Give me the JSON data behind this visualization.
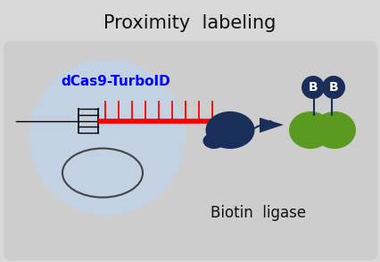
{
  "title": "Proximity  labeling",
  "title_fontsize": 15,
  "title_color": "#111111",
  "bg_color": "#d8d8d8",
  "panel_color": "#cccccc",
  "dna_line_color": "#ff0000",
  "cas9_color": "#1a2e5a",
  "label_text": "dCas9-TurboID",
  "label_color": "#0000ff",
  "label_fontsize": 11,
  "biotin_text": "Biotin  ligase",
  "biotin_fontsize": 12,
  "biotin_color": "#111111",
  "blue_circle_color": "#1a2e5a",
  "green_circle_color": "#5a9a20",
  "B_text_color": "#ffffff",
  "B_fontsize": 10,
  "nucleus_bg_color": "#c2d4e8",
  "panel_bg_color": "#cccccc"
}
